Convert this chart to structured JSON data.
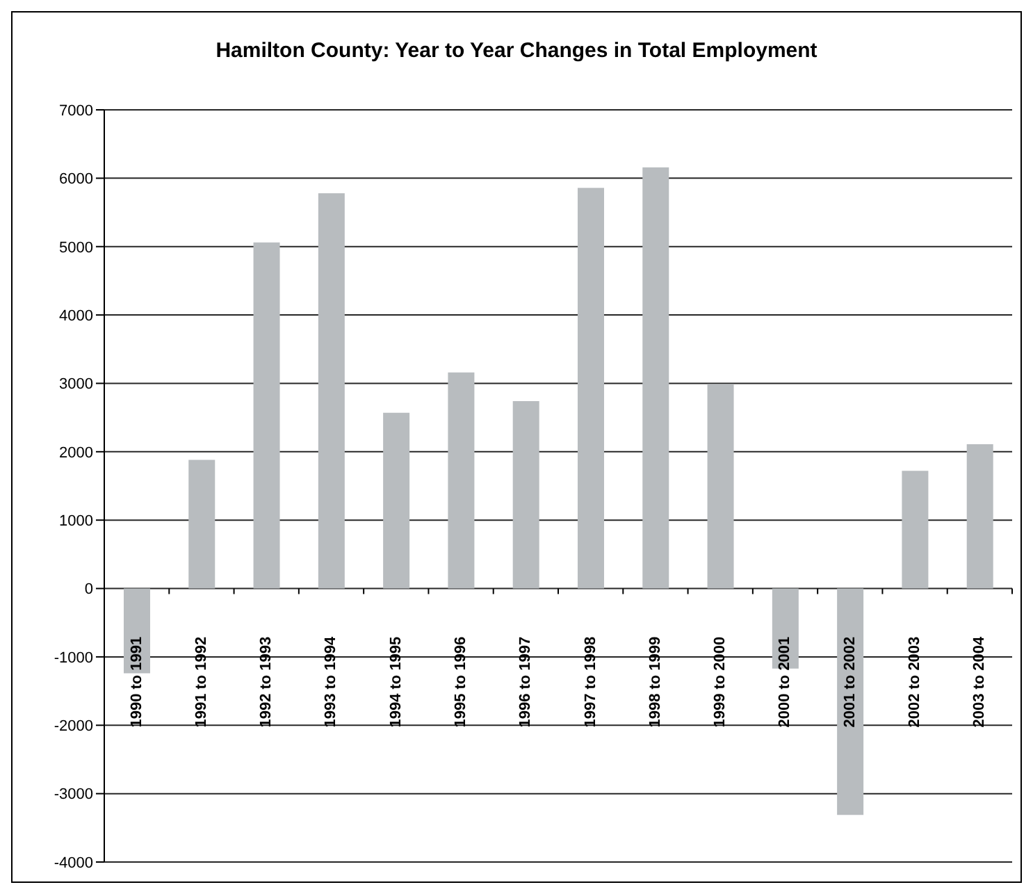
{
  "chart_data": {
    "type": "bar",
    "title": "Hamilton County: Year to Year Changes in Total Employment",
    "categories": [
      "1990 to 1991",
      "1991 to 1992",
      "1992 to 1993",
      "1993 to 1994",
      "1994 to 1995",
      "1995 to 1996",
      "1996 to 1997",
      "1997 to 1998",
      "1998 to 1999",
      "1999 to 2000",
      "2000 to 2001",
      "2001 to 2002",
      "2002 to 2003",
      "2003 to 2004"
    ],
    "values": [
      -1240,
      1880,
      5060,
      5780,
      2570,
      3160,
      2740,
      5860,
      6160,
      2990,
      -1170,
      -3310,
      1720,
      2110
    ],
    "color": "#b8bcbf",
    "ylim": [
      -4000,
      7000
    ],
    "yticks": [
      -4000,
      -3000,
      -2000,
      -1000,
      0,
      1000,
      2000,
      3000,
      4000,
      5000,
      6000,
      7000
    ],
    "grid": "y"
  }
}
